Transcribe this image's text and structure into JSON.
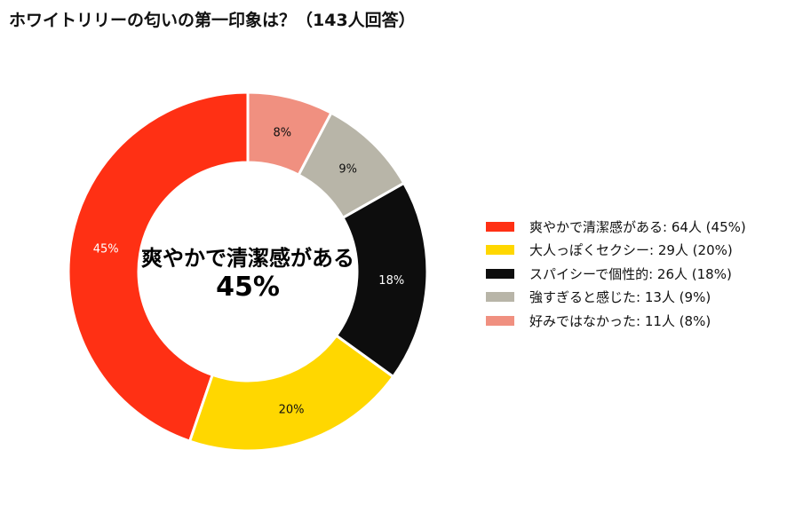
{
  "chart_data": {
    "type": "pie",
    "title": "ホワイトリリーの匂いの第一印象は？（143人回答）",
    "categories": [
      "爽やかで清潔感がある",
      "大人っぽくセクシー",
      "スパイシーで個性的",
      "強すぎると感じた",
      "好みではなかった"
    ],
    "values": [
      64,
      29,
      26,
      13,
      11
    ],
    "percent_labels": [
      "45%",
      "20%",
      "18%",
      "9%",
      "8%"
    ],
    "colors": [
      "#ff3014",
      "#ffd700",
      "#0d0d0d",
      "#b8b5a8",
      "#f09080"
    ],
    "label_colors": [
      "#ffffff",
      "#111111",
      "#ffffff",
      "#111111",
      "#111111"
    ],
    "legend_labels": [
      "爽やかで清潔感がある:  64人 (45%)",
      "大人っぽくセクシー:  29人 (20%)",
      "スパイシーで個性的:  26人 (18%)",
      "強すぎると感じた:  13人 (9%)",
      "好みではなかった:  11人 (8%)"
    ],
    "center_label": "爽やかで清潔感がある",
    "center_value": "45%",
    "legend_position": "right"
  }
}
